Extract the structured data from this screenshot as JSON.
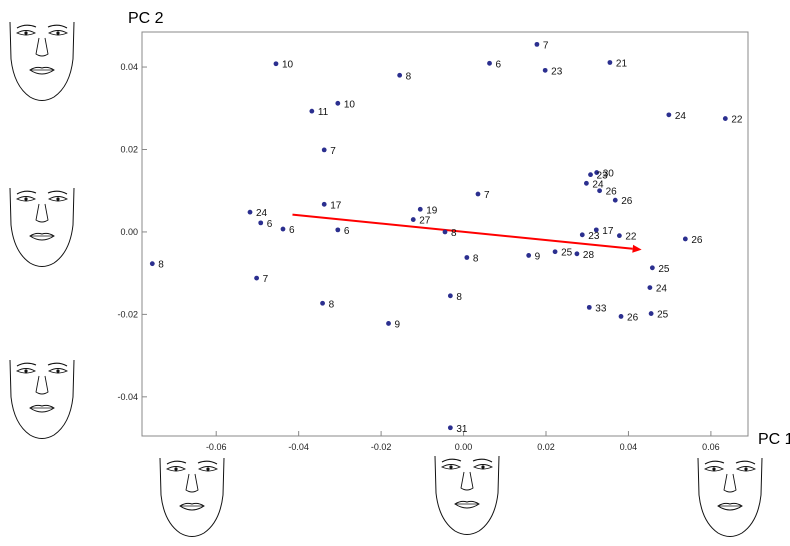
{
  "chart_data": {
    "type": "scatter",
    "title": "",
    "xlabel": "PC 1",
    "ylabel": "PC 2",
    "xlim": [
      -0.078,
      0.069
    ],
    "ylim": [
      -0.0495,
      0.0485
    ],
    "x_ticks": [
      "-0.06",
      "-0.04",
      "-0.02",
      "0.00",
      "0.02",
      "0.04",
      "0.06"
    ],
    "y_ticks": [
      "0.04",
      "0.02",
      "0.00",
      "-0.02",
      "-0.04"
    ],
    "x_tick_values": [
      -0.06,
      -0.04,
      -0.02,
      0.0,
      0.02,
      0.04,
      0.06
    ],
    "y_tick_values": [
      0.04,
      0.02,
      0.0,
      -0.02,
      -0.04
    ],
    "grid": false,
    "point_color": "#2b2f8f",
    "arrow_color": "#ff0000",
    "arrow": {
      "from": [
        -0.0415,
        0.0042
      ],
      "to": [
        0.0432,
        -0.0043
      ]
    },
    "points": [
      {
        "x": -0.0455,
        "y": 0.0408,
        "label": "10"
      },
      {
        "x": -0.0155,
        "y": 0.038,
        "label": "8"
      },
      {
        "x": 0.0178,
        "y": 0.0455,
        "label": "7"
      },
      {
        "x": 0.0063,
        "y": 0.0409,
        "label": "6"
      },
      {
        "x": 0.0198,
        "y": 0.0392,
        "label": "23"
      },
      {
        "x": 0.0355,
        "y": 0.0411,
        "label": "21"
      },
      {
        "x": -0.0305,
        "y": 0.0312,
        "label": "10"
      },
      {
        "x": -0.0368,
        "y": 0.0293,
        "label": "11"
      },
      {
        "x": 0.0498,
        "y": 0.0284,
        "label": "24"
      },
      {
        "x": 0.0635,
        "y": 0.0275,
        "label": "22"
      },
      {
        "x": -0.0338,
        "y": 0.0199,
        "label": "7"
      },
      {
        "x": 0.0323,
        "y": 0.0144,
        "label": "30"
      },
      {
        "x": 0.0308,
        "y": 0.0139,
        "label": "23"
      },
      {
        "x": 0.0298,
        "y": 0.0118,
        "label": "24"
      },
      {
        "x": 0.033,
        "y": 0.01,
        "label": "26"
      },
      {
        "x": 0.0368,
        "y": 0.0077,
        "label": "26"
      },
      {
        "x": 0.0035,
        "y": 0.0092,
        "label": "7"
      },
      {
        "x": -0.0338,
        "y": 0.0067,
        "label": "17"
      },
      {
        "x": -0.0105,
        "y": 0.0055,
        "label": "19"
      },
      {
        "x": -0.0122,
        "y": 0.003,
        "label": "27"
      },
      {
        "x": -0.0518,
        "y": 0.0048,
        "label": "24"
      },
      {
        "x": -0.0492,
        "y": 0.0022,
        "label": "6"
      },
      {
        "x": -0.0438,
        "y": 0.0007,
        "label": "6"
      },
      {
        "x": -0.0305,
        "y": 0.0005,
        "label": "6"
      },
      {
        "x": -0.0045,
        "y": 0.0,
        "label": "8"
      },
      {
        "x": 0.0322,
        "y": 0.0005,
        "label": "17"
      },
      {
        "x": 0.0288,
        "y": -0.0007,
        "label": "23"
      },
      {
        "x": 0.0378,
        "y": -0.0009,
        "label": "22"
      },
      {
        "x": 0.0538,
        "y": -0.0017,
        "label": "26"
      },
      {
        "x": 0.0008,
        "y": -0.0062,
        "label": "8"
      },
      {
        "x": 0.0158,
        "y": -0.0057,
        "label": "9"
      },
      {
        "x": 0.0222,
        "y": -0.0048,
        "label": "25"
      },
      {
        "x": 0.0275,
        "y": -0.0053,
        "label": "28"
      },
      {
        "x": -0.0755,
        "y": -0.0077,
        "label": "8"
      },
      {
        "x": -0.0502,
        "y": -0.0112,
        "label": "7"
      },
      {
        "x": 0.0458,
        "y": -0.0087,
        "label": "25"
      },
      {
        "x": 0.0452,
        "y": -0.0135,
        "label": "24"
      },
      {
        "x": -0.0342,
        "y": -0.0173,
        "label": "8"
      },
      {
        "x": -0.0032,
        "y": -0.0155,
        "label": "8"
      },
      {
        "x": 0.0305,
        "y": -0.0183,
        "label": "33"
      },
      {
        "x": 0.0382,
        "y": -0.0205,
        "label": "26"
      },
      {
        "x": 0.0455,
        "y": -0.0198,
        "label": "25"
      },
      {
        "x": -0.0182,
        "y": -0.0222,
        "label": "9"
      },
      {
        "x": -0.0032,
        "y": -0.0475,
        "label": "31"
      }
    ]
  }
}
